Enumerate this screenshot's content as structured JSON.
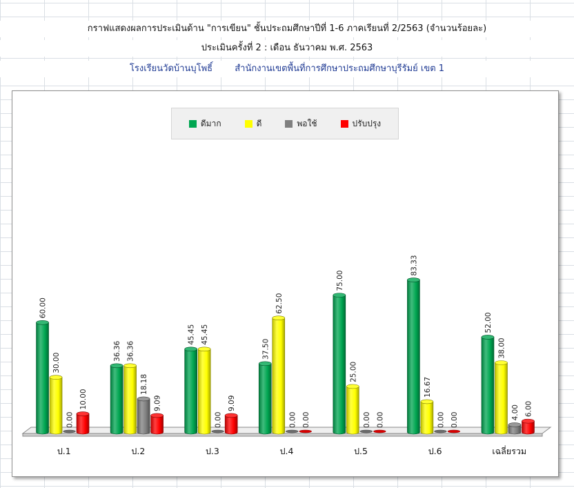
{
  "header": {
    "line1": "กราฟแสดงผลการประเมินด้าน \"การเขียน\"  ชั้นประถมศึกษาปีที่ 1-6 ภาคเรียนที่ 2/2563 (จำนวนร้อยละ)",
    "line2": "ประเมินครั้งที่ 2 : เดือน ธันวาคม  พ.ศ. 2563",
    "school": "โรงเรียนวัดบ้านบุโพธิ์",
    "office": "สำนักงานเขตพื้นที่การศึกษาประถมศึกษาบุรีรัมย์ เขต 1"
  },
  "colors": {
    "very_good": "#00a651",
    "good": "#ffff00",
    "fair": "#7f7f7f",
    "improve": "#ff0000"
  },
  "chart_data": {
    "type": "bar",
    "style": "3d-cylinder",
    "categories": [
      "ป.1",
      "ป.2",
      "ป.3",
      "ป.4",
      "ป.5",
      "ป.6",
      "เฉลี่ยรวม"
    ],
    "series": [
      {
        "name": "ดีมาก",
        "color": "#00a651",
        "values": [
          60.0,
          36.36,
          45.45,
          37.5,
          75.0,
          83.33,
          52.0
        ],
        "labels": [
          "60.00",
          "36.36",
          "45.45",
          "37.50",
          "75.00",
          "83.33",
          "52.00"
        ]
      },
      {
        "name": "ดี",
        "color": "#ffff00",
        "values": [
          30.0,
          36.36,
          45.45,
          62.5,
          25.0,
          16.67,
          38.0
        ],
        "labels": [
          "30.00",
          "36.36",
          "45.45",
          "62.50",
          "25.00",
          "16.67",
          "38.00"
        ]
      },
      {
        "name": "พอใช้",
        "color": "#7f7f7f",
        "values": [
          0.0,
          18.18,
          0.0,
          0.0,
          0.0,
          0.0,
          4.0
        ],
        "labels": [
          "0.00",
          "18.18",
          "0.00",
          "0.00",
          "0.00",
          "0.00",
          "4.00"
        ]
      },
      {
        "name": "ปรับปรุง",
        "color": "#ff0000",
        "values": [
          10.0,
          9.09,
          9.09,
          0.0,
          0.0,
          0.0,
          6.0
        ],
        "labels": [
          "10.00",
          "9.09",
          "9.09",
          "0.00",
          "0.00",
          "0.00",
          "6.00"
        ]
      }
    ],
    "ylim": [
      0,
      90
    ],
    "legend_position": "top-center",
    "grid": false
  }
}
